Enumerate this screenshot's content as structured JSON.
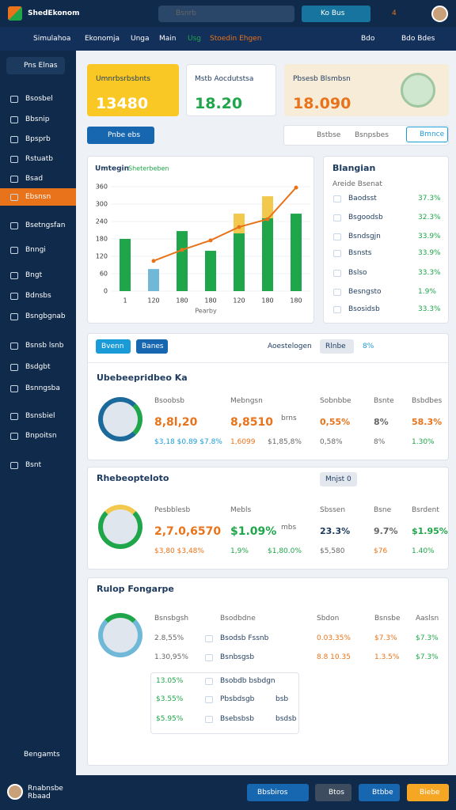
{
  "header": {
    "logo": "ShedEkonom",
    "search": "Bsnrb",
    "button": "Ko Bus",
    "badge": "4"
  },
  "nav": {
    "items": [
      "Simulahoa",
      "Ekonomja",
      "Unga",
      "Main",
      "Usg",
      "Stoedin Ehgen"
    ],
    "right": [
      "Bdo",
      "Bdo Bdes"
    ]
  },
  "sidebar": {
    "search": "Pns Elnas",
    "items": [
      "Bsosbel",
      "Bbsnip",
      "Bpsprb",
      "Rstuatb",
      "Bsad",
      "Ebsnsn",
      "Bsetngsfan",
      "Bnngi",
      "Bngt",
      "Bdnsbs",
      "Bsngbgnab",
      "Bsnsb lsnb",
      "Bsdgbt",
      "Bsnngsba",
      "Bsnsbiel",
      "Bnpoitsn",
      "Bsnt"
    ],
    "footer": "Bengamts"
  },
  "kpis": [
    {
      "title": "Umnrbsrbsbnts",
      "value": "13480"
    },
    {
      "title": "Mstb Aocdutstsa",
      "value": "18.20"
    },
    {
      "title": "Pbsesb Blsmbsn",
      "value": "18.090"
    }
  ],
  "filter": {
    "button": "Pnbe ebs",
    "tabs": [
      "Bstbse",
      "Bsnpsbes"
    ],
    "action": "Bmnce"
  },
  "chart_data": {
    "type": "bar",
    "title": "Umtegin",
    "subtitle": "Sheterbeben",
    "x_label": "Pearby",
    "categories": [
      "1",
      "120",
      "180",
      "180",
      "120",
      "180",
      "180"
    ],
    "series": [
      {
        "color": "#1fa64a",
        "values": [
          180,
          null,
          207,
          139,
          199,
          251,
          267
        ]
      },
      {
        "color": "#f2c94c",
        "values": [
          null,
          null,
          null,
          null,
          68,
          76,
          null
        ]
      },
      {
        "color": "#6fb8d8",
        "values": [
          null,
          76,
          null,
          null,
          null,
          null,
          null
        ]
      }
    ],
    "line": {
      "color": "#e8731a",
      "values": [
        null,
        104,
        142,
        175,
        221,
        248,
        357
      ]
    },
    "ylim": [
      0,
      360
    ],
    "yticks": [
      0,
      60,
      120,
      180,
      240,
      300,
      360
    ],
    "grid": true
  },
  "side_list": {
    "title": "Blangian",
    "subtitle": "Areide Bsenat",
    "names": [
      "Baodsst",
      "Bsgoodsb",
      "Bsndsgjn",
      "Bsnsts",
      "Bslso",
      "Besngsto",
      "Bsosidsb"
    ],
    "values": [
      "37.3%",
      "32.3%",
      "33.9%",
      "33.9%",
      "33.3%",
      "1.9%",
      "33.3%"
    ]
  },
  "toolbar": {
    "buttons": [
      "Bvenn",
      "Banes"
    ],
    "label": "Aoestelogen",
    "select": "Rlnbe",
    "tag": "8%"
  },
  "panel1": {
    "title": "Ubebeepridbeo Ka",
    "headers": [
      "Bsoobsb",
      "Mebngsn",
      "Sobnbbe",
      "Bsnte",
      "Bsbdbes"
    ],
    "row1": [
      "8,8l,20",
      "8,8510",
      "0,55%",
      "8%",
      "58.3%"
    ],
    "note": "brns",
    "row2": [
      "$3,18 $0.89 $7.8%",
      "1,6099",
      "$1,85,8%",
      "0,58%",
      "8%",
      "1.30%"
    ]
  },
  "panel2": {
    "title": "Rhebeopteloto",
    "control": "Mnjst 0",
    "headers": [
      "Pesbblesb",
      "Mebls",
      "Sbssen",
      "Bsne",
      "Bsrdent"
    ],
    "row1": [
      "2,7.0,6570",
      "$1.09%",
      "23.3%",
      "9.7%",
      "$1.95%"
    ],
    "note": "mbs",
    "row2": [
      "$3,80 $3,48%",
      "1,9%",
      "$1,80.0%",
      "$5,580",
      "$76",
      "1.40%"
    ]
  },
  "panel3": {
    "title": "Rulop Fongarpe",
    "headers": [
      "Bsnsbgsh",
      "Bsodbdne",
      "Sbdon",
      "Bsnsbe",
      "Aaslsn"
    ],
    "rows": [
      [
        "2.8,55%",
        "Bsodsb Fssnb",
        "0.03.35%",
        "$7.3%",
        "$7.3%"
      ],
      [
        "1.30,95%",
        "Bsnbsgsb",
        "8.8 10.35",
        "1.3.5%",
        "$7.3%"
      ]
    ],
    "subrows": [
      [
        "13.05%",
        "Bsobdb bsbdgn"
      ],
      [
        "$3.55%",
        "Pbsbdsgb",
        "bsb"
      ],
      [
        "$5.95%",
        "Bsebsbsb",
        "bsdsb"
      ]
    ]
  },
  "footer": {
    "name": "Rnabnsbe",
    "role": "Rbaad",
    "buttons": [
      "Bbsbiros",
      "Btos",
      "Btbbe",
      "Biebe"
    ]
  }
}
